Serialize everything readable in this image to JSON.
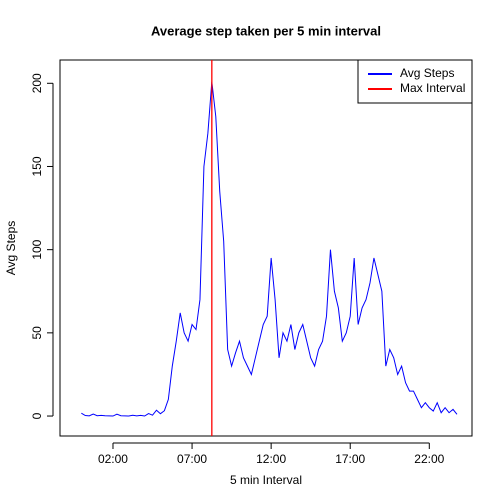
{
  "chart_data": {
    "type": "line",
    "title": "Average step taken per 5 min interval",
    "xlabel": "5 min Interval",
    "ylabel": "Avg Steps",
    "x": [
      0,
      0.25,
      0.5,
      0.75,
      1,
      1.25,
      1.5,
      1.75,
      2,
      2.25,
      2.5,
      2.75,
      3,
      3.25,
      3.5,
      3.75,
      4,
      4.25,
      4.5,
      4.75,
      5,
      5.25,
      5.5,
      5.75,
      6,
      6.25,
      6.5,
      6.75,
      7,
      7.25,
      7.5,
      7.75,
      8,
      8.25,
      8.5,
      8.75,
      9,
      9.25,
      9.5,
      9.75,
      10,
      10.25,
      10.5,
      10.75,
      11,
      11.25,
      11.5,
      11.75,
      12,
      12.25,
      12.5,
      12.75,
      13,
      13.25,
      13.5,
      13.75,
      14,
      14.25,
      14.5,
      14.75,
      15,
      15.25,
      15.5,
      15.75,
      16,
      16.25,
      16.5,
      16.75,
      17,
      17.25,
      17.5,
      17.75,
      18,
      18.25,
      18.5,
      18.75,
      19,
      19.25,
      19.5,
      19.75,
      20,
      20.25,
      20.5,
      20.75,
      21,
      21.25,
      21.5,
      21.75,
      22,
      22.25,
      22.5,
      22.75,
      23,
      23.25,
      23.5,
      23.75
    ],
    "series": [
      {
        "name": "Avg Steps",
        "color": "#0000ff",
        "values": [
          1.7,
          0.3,
          0.1,
          1.2,
          0.2,
          0.4,
          0.2,
          0.1,
          0,
          1.1,
          0.2,
          0.1,
          0,
          0.5,
          0.1,
          0.4,
          0,
          1.5,
          0.5,
          3.5,
          1.4,
          3.2,
          10,
          30,
          45,
          62,
          50,
          45,
          55,
          52,
          70,
          150,
          170,
          201,
          180,
          135,
          105,
          40,
          30,
          38,
          45,
          35,
          30,
          25,
          35,
          45,
          55,
          60,
          95,
          70,
          35,
          50,
          45,
          55,
          40,
          50,
          55,
          45,
          35,
          30,
          40,
          45,
          60,
          100,
          75,
          65,
          45,
          50,
          60,
          95,
          55,
          65,
          70,
          80,
          95,
          85,
          75,
          30,
          40,
          35,
          25,
          30,
          20,
          15,
          15,
          10,
          5,
          8,
          5,
          3,
          8,
          2,
          5,
          2,
          4,
          1
        ]
      }
    ],
    "vline": {
      "name": "Max Interval",
      "color": "#ff0000",
      "x": 8.25
    },
    "xlim": [
      -1.35,
      24.7
    ],
    "xticks": [
      {
        "value": 2,
        "label": "02:00"
      },
      {
        "value": 7,
        "label": "07:00"
      },
      {
        "value": 12,
        "label": "12:00"
      },
      {
        "value": 17,
        "label": "17:00"
      },
      {
        "value": 22,
        "label": "22:00"
      }
    ],
    "ylim": [
      -12,
      214
    ],
    "yticks": [
      0,
      50,
      100,
      150,
      200
    ],
    "legend": "topright"
  }
}
